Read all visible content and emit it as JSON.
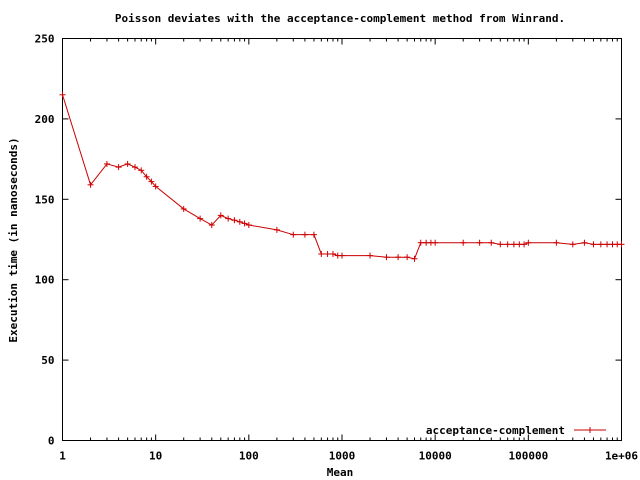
{
  "chart_data": {
    "type": "line",
    "title": "Poisson deviates with the acceptance-complement method from Winrand.",
    "xlabel": "Mean",
    "ylabel": "Execution time (in nanoseconds)",
    "x_scale": "log",
    "xlim": [
      1,
      1000000
    ],
    "ylim": [
      0,
      250
    ],
    "x_ticks": [
      1,
      10,
      100,
      1000,
      10000,
      100000,
      1000000
    ],
    "x_tick_labels": [
      "1",
      "10",
      "100",
      "1000",
      "10000",
      "100000",
      "1e+06"
    ],
    "y_ticks": [
      0,
      50,
      100,
      150,
      200,
      250
    ],
    "y_tick_labels": [
      "0",
      "50",
      "100",
      "150",
      "200",
      "250"
    ],
    "grid": false,
    "legend_position": "bottom-right",
    "colors": {
      "series": "#cc0000"
    },
    "series": [
      {
        "name": "acceptance-complement",
        "x": [
          1,
          2,
          3,
          4,
          5,
          6,
          7,
          8,
          9,
          10,
          20,
          30,
          40,
          50,
          60,
          70,
          80,
          90,
          100,
          200,
          300,
          400,
          500,
          600,
          700,
          800,
          900,
          1000,
          2000,
          3000,
          4000,
          5000,
          6000,
          7000,
          8000,
          9000,
          10000,
          20000,
          30000,
          40000,
          50000,
          60000,
          70000,
          80000,
          90000,
          100000,
          200000,
          300000,
          400000,
          500000,
          600000,
          700000,
          800000,
          900000,
          1000000
        ],
        "values": [
          215,
          159,
          172,
          170,
          172,
          170,
          168,
          164,
          161,
          158,
          144,
          138,
          134,
          140,
          138,
          137,
          136,
          135,
          134,
          131,
          128,
          128,
          128,
          116,
          116,
          116,
          115,
          115,
          115,
          114,
          114,
          114,
          113,
          123,
          123,
          123,
          123,
          123,
          123,
          123,
          122,
          122,
          122,
          122,
          122,
          123,
          123,
          122,
          123,
          122,
          122,
          122,
          122,
          122,
          122
        ]
      }
    ]
  }
}
